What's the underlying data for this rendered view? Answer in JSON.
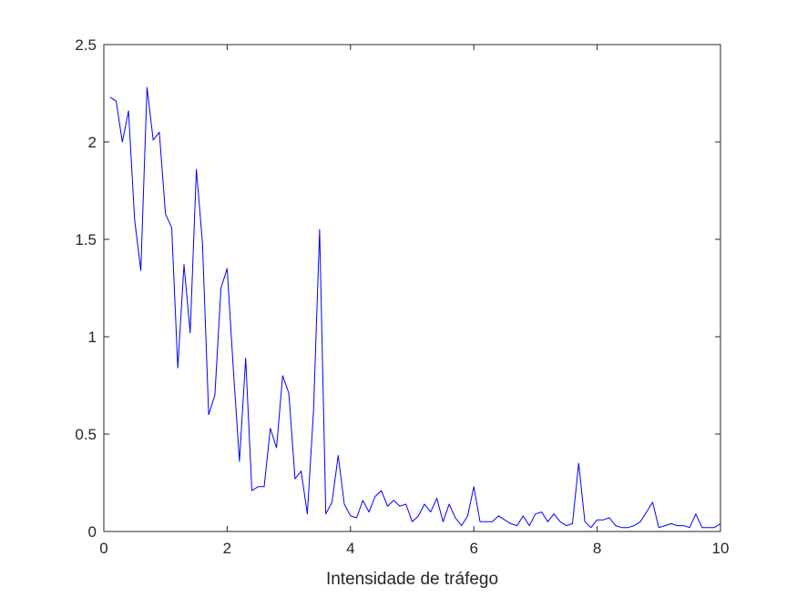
{
  "chart_data": {
    "type": "line",
    "title": "",
    "xlabel": "Intensidade de tráfego",
    "ylabel": "",
    "xlim": [
      0,
      10
    ],
    "ylim": [
      0,
      2.5
    ],
    "xticks": [
      0,
      2,
      4,
      6,
      8,
      10
    ],
    "xtick_labels": [
      "0",
      "2",
      "4",
      "6",
      "8",
      "10"
    ],
    "yticks": [
      0,
      0.5,
      1,
      1.5,
      2,
      2.5
    ],
    "ytick_labels": [
      "0",
      "0.5",
      "1",
      "1.5",
      "2",
      "2.5"
    ],
    "grid": false,
    "box": true,
    "line_color": "#0000ff",
    "x": [
      0.1,
      0.2,
      0.3,
      0.4,
      0.5,
      0.6,
      0.7,
      0.8,
      0.9,
      1.0,
      1.1,
      1.2,
      1.3,
      1.4,
      1.5,
      1.6,
      1.7,
      1.8,
      1.9,
      2.0,
      2.1,
      2.2,
      2.3,
      2.4,
      2.5,
      2.6,
      2.7,
      2.8,
      2.9,
      3.0,
      3.1,
      3.2,
      3.3,
      3.4,
      3.5,
      3.6,
      3.7,
      3.8,
      3.9,
      4.0,
      4.1,
      4.2,
      4.3,
      4.4,
      4.5,
      4.6,
      4.7,
      4.8,
      4.9,
      5.0,
      5.1,
      5.2,
      5.3,
      5.4,
      5.5,
      5.6,
      5.7,
      5.8,
      5.9,
      6.0,
      6.1,
      6.2,
      6.3,
      6.4,
      6.5,
      6.6,
      6.7,
      6.8,
      6.9,
      7.0,
      7.1,
      7.2,
      7.3,
      7.4,
      7.5,
      7.6,
      7.7,
      7.8,
      7.9,
      8.0,
      8.1,
      8.2,
      8.3,
      8.4,
      8.5,
      8.6,
      8.7,
      8.8,
      8.9,
      9.0,
      9.1,
      9.2,
      9.3,
      9.4,
      9.5,
      9.6,
      9.7,
      9.8,
      9.9,
      10.0
    ],
    "series": [
      {
        "values": [
          2.23,
          2.21,
          2.0,
          2.16,
          1.6,
          1.34,
          2.28,
          2.01,
          2.05,
          1.63,
          1.56,
          0.84,
          1.37,
          1.02,
          1.86,
          1.48,
          0.6,
          0.7,
          1.25,
          1.35,
          0.83,
          0.36,
          0.89,
          0.21,
          0.23,
          0.23,
          0.53,
          0.43,
          0.8,
          0.71,
          0.27,
          0.31,
          0.09,
          0.62,
          1.55,
          0.09,
          0.15,
          0.39,
          0.14,
          0.08,
          0.07,
          0.16,
          0.1,
          0.18,
          0.21,
          0.13,
          0.16,
          0.13,
          0.14,
          0.05,
          0.08,
          0.14,
          0.1,
          0.17,
          0.05,
          0.14,
          0.07,
          0.03,
          0.08,
          0.23,
          0.05,
          0.05,
          0.05,
          0.08,
          0.06,
          0.04,
          0.03,
          0.08,
          0.03,
          0.09,
          0.1,
          0.05,
          0.09,
          0.05,
          0.03,
          0.04,
          0.35,
          0.05,
          0.02,
          0.06,
          0.06,
          0.07,
          0.03,
          0.02,
          0.02,
          0.03,
          0.05,
          0.1,
          0.15,
          0.02,
          0.03,
          0.04,
          0.03,
          0.03,
          0.02,
          0.09,
          0.02,
          0.02,
          0.02,
          0.04
        ]
      }
    ]
  }
}
